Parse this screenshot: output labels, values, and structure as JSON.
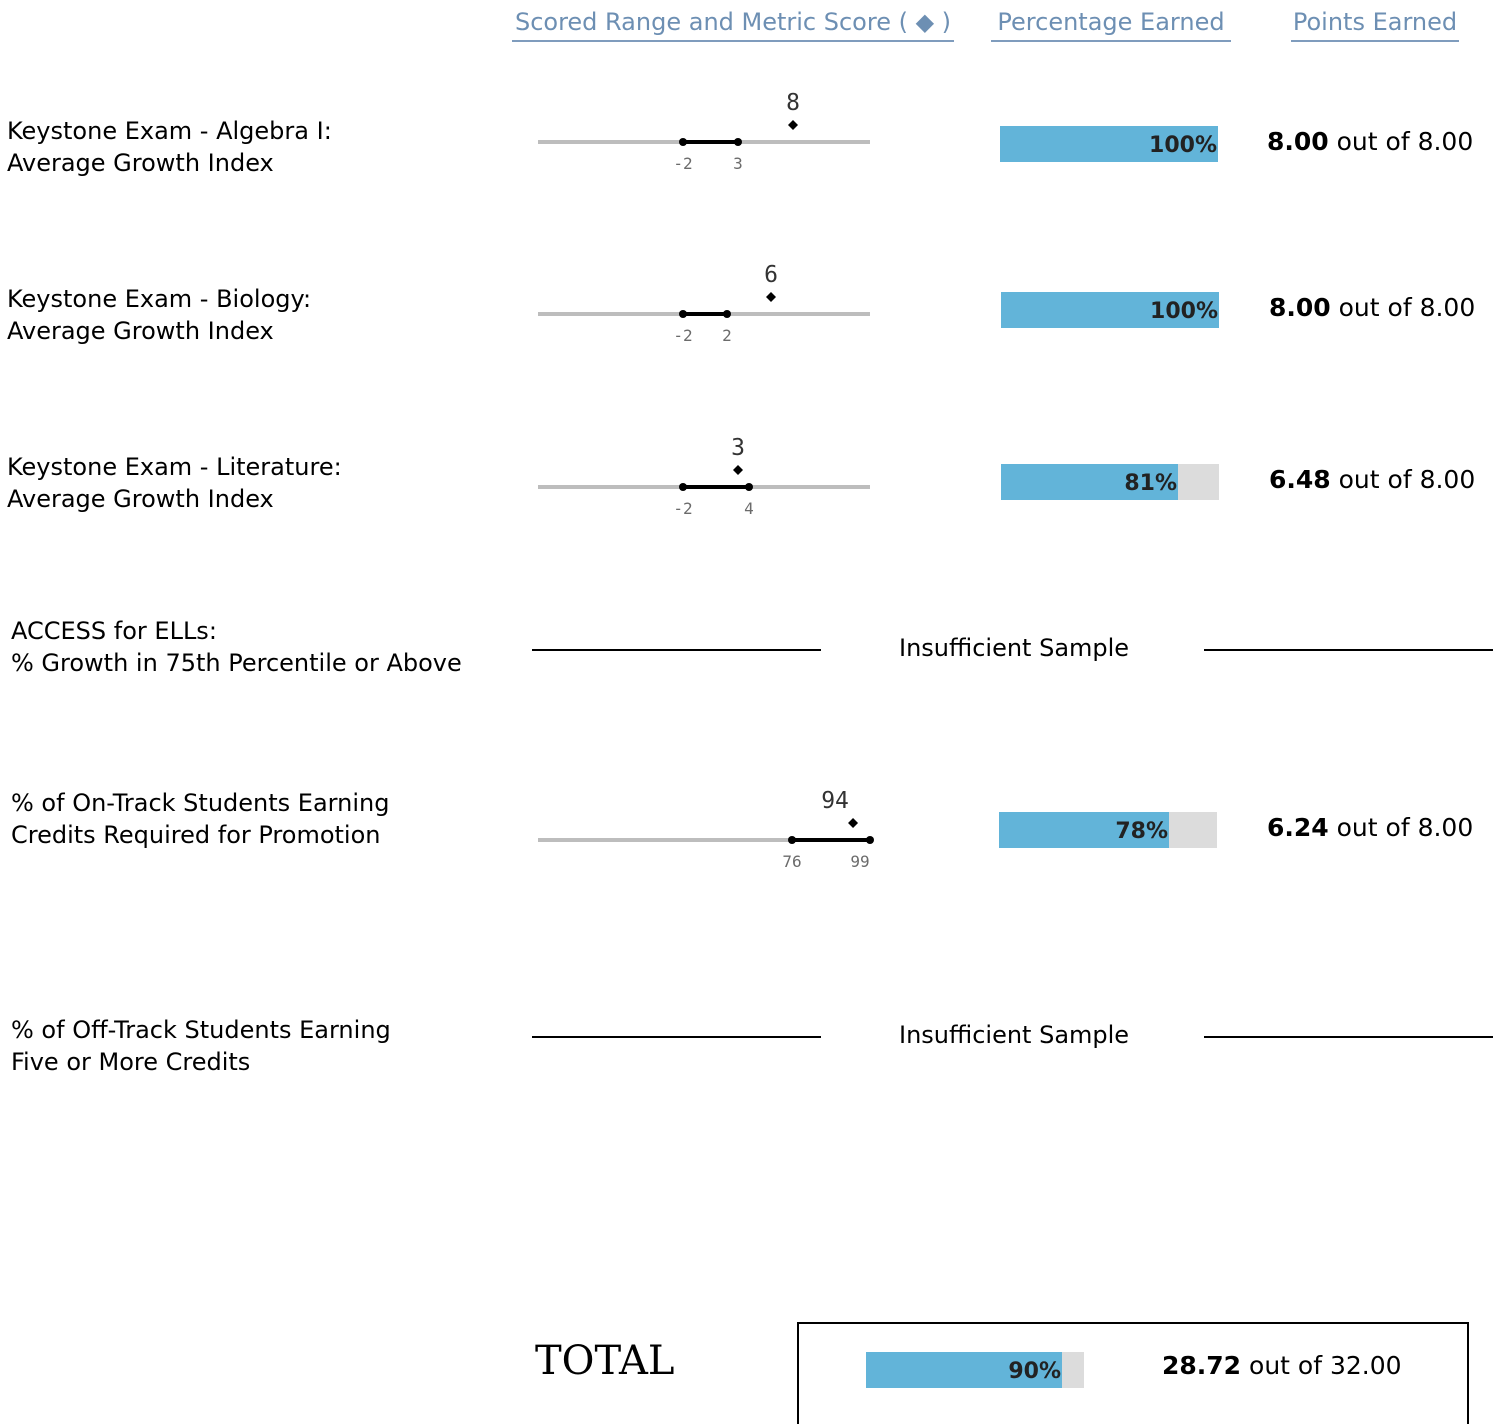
{
  "headers": {
    "scored_range": "Scored Range and Metric Score ( ◆ )",
    "percentage_earned": "Percentage Earned",
    "points_earned": "Points Earned"
  },
  "rows": [
    {
      "label_line1": "Keystone Exam - Algebra I:",
      "label_line2": "Average Growth Index",
      "range_low": "-2",
      "range_high": "3",
      "score": "8",
      "percent": "100%",
      "percent_value": 100,
      "points": "8.00",
      "points_suffix": " out of  8.00"
    },
    {
      "label_line1": "Keystone Exam - Biology:",
      "label_line2": "Average Growth Index",
      "range_low": "-2",
      "range_high": "2",
      "score": "6",
      "percent": "100%",
      "percent_value": 100,
      "points": "8.00",
      "points_suffix": " out of  8.00"
    },
    {
      "label_line1": "Keystone Exam - Literature:",
      "label_line2": "Average Growth Index",
      "range_low": "-2",
      "range_high": "4",
      "score": "3",
      "percent": "81%",
      "percent_value": 81,
      "points": "6.48",
      "points_suffix": " out of  8.00"
    },
    {
      "label_line1": "ACCESS for ELLs:",
      "label_line2": "% Growth in 75th Percentile or Above",
      "status": "Insufficient Sample"
    },
    {
      "label_line1": "% of On-Track Students Earning",
      "label_line2": "Credits Required for Promotion",
      "range_low": "76",
      "range_high": "99",
      "score": "94",
      "percent": "78%",
      "percent_value": 78,
      "points": "6.24",
      "points_suffix": " out of  8.00"
    },
    {
      "label_line1": "% of Off-Track Students Earning",
      "label_line2": "Five or More Credits",
      "status": "Insufficient Sample"
    }
  ],
  "total": {
    "label": "TOTAL",
    "percent": "90%",
    "percent_value": 90,
    "points": "28.72",
    "points_suffix": " out of 32.00"
  },
  "colors": {
    "bar_fill": "#62b4d9",
    "bar_track": "#dcdcdc",
    "header_text": "#6d8fb3"
  },
  "chart_data": {
    "type": "table",
    "columns": [
      "Scored Range and Metric Score ( ◆ )",
      "Percentage Earned",
      "Points Earned"
    ],
    "rows": [
      {
        "metric": "Keystone Exam - Algebra I: Average Growth Index",
        "range": [
          -2,
          3
        ],
        "score": 8,
        "percent": 100,
        "points": 8.0,
        "max_points": 8.0
      },
      {
        "metric": "Keystone Exam - Biology: Average Growth Index",
        "range": [
          -2,
          2
        ],
        "score": 6,
        "percent": 100,
        "points": 8.0,
        "max_points": 8.0
      },
      {
        "metric": "Keystone Exam - Literature: Average Growth Index",
        "range": [
          -2,
          4
        ],
        "score": 3,
        "percent": 81,
        "points": 6.48,
        "max_points": 8.0
      },
      {
        "metric": "ACCESS for ELLs: % Growth in 75th Percentile or Above",
        "status": "Insufficient Sample"
      },
      {
        "metric": "% of On-Track Students Earning Credits Required for Promotion",
        "range": [
          76,
          99
        ],
        "score": 94,
        "percent": 78,
        "points": 6.24,
        "max_points": 8.0
      },
      {
        "metric": "% of Off-Track Students Earning Five or More Credits",
        "status": "Insufficient Sample"
      }
    ],
    "total": {
      "percent": 90,
      "points": 28.72,
      "max_points": 32.0
    }
  }
}
